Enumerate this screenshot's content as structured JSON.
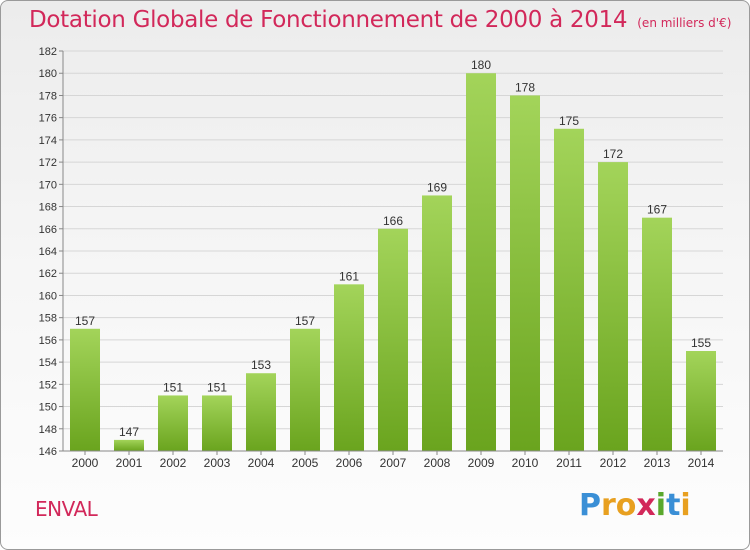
{
  "title": "Dotation Globale de Fonctionnement de 2000 à 2014",
  "unit": "(en milliers d'€)",
  "commune": "ENVAL",
  "logo": {
    "letters": [
      "P",
      "r",
      "o",
      "x",
      "i",
      "t",
      "i"
    ],
    "colors": [
      "#3a8fd6",
      "#e8a020",
      "#e8a020",
      "#d2285a",
      "#5aa82c",
      "#3a8fd6",
      "#e8a020"
    ]
  },
  "colors": {
    "bar_top": "#a3d45a",
    "bar_bottom": "#6aa41e",
    "title": "#d2285a"
  },
  "chart_data": {
    "type": "bar",
    "categories": [
      "2000",
      "2001",
      "2002",
      "2003",
      "2004",
      "2005",
      "2006",
      "2007",
      "2008",
      "2009",
      "2010",
      "2011",
      "2012",
      "2013",
      "2014"
    ],
    "values": [
      157,
      147,
      151,
      151,
      153,
      157,
      161,
      166,
      169,
      180,
      178,
      175,
      172,
      167,
      155
    ],
    "data_labels": [
      "157",
      "147",
      "151",
      "151",
      "153",
      "157",
      "161",
      "166",
      "169",
      "180",
      "178",
      "175",
      "172",
      "167",
      "155"
    ],
    "yticks": [
      "146",
      "148",
      "150",
      "152",
      "154",
      "156",
      "158",
      "160",
      "162",
      "164",
      "166",
      "168",
      "170",
      "172",
      "174",
      "176",
      "178",
      "180",
      "182"
    ],
    "ylim": [
      146,
      182
    ],
    "grid": true
  }
}
